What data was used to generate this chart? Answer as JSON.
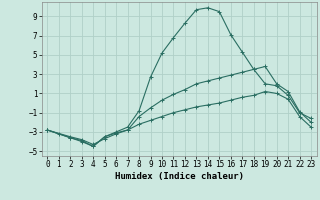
{
  "xlabel": "Humidex (Indice chaleur)",
  "bg_color": "#cce8e0",
  "grid_color": "#b0d0c8",
  "line_color": "#2a6e62",
  "xlim": [
    -0.5,
    23.5
  ],
  "ylim": [
    -5.5,
    10.5
  ],
  "yticks": [
    -5,
    -3,
    -1,
    1,
    3,
    5,
    7,
    9
  ],
  "xticks": [
    0,
    1,
    2,
    3,
    4,
    5,
    6,
    7,
    8,
    9,
    10,
    11,
    12,
    13,
    14,
    15,
    16,
    17,
    18,
    19,
    20,
    21,
    22,
    23
  ],
  "line1_x": [
    0,
    1,
    2,
    3,
    4,
    5,
    6,
    7,
    8,
    9,
    10,
    11,
    12,
    13,
    14,
    15,
    16,
    17,
    18,
    19,
    20,
    21,
    22,
    23
  ],
  "line1_y": [
    -2.8,
    -3.2,
    -3.6,
    -4.0,
    -4.5,
    -3.5,
    -3.0,
    -2.5,
    -0.8,
    2.7,
    5.2,
    6.8,
    8.3,
    9.7,
    9.9,
    9.5,
    7.1,
    5.3,
    3.5,
    2.0,
    1.8,
    0.8,
    -1.0,
    -1.6
  ],
  "line2_x": [
    0,
    2,
    3,
    4,
    5,
    6,
    7,
    8,
    9,
    10,
    11,
    12,
    13,
    14,
    15,
    16,
    17,
    18,
    19,
    20,
    21,
    22,
    23
  ],
  "line2_y": [
    -2.8,
    -3.5,
    -3.8,
    -4.3,
    -3.7,
    -3.2,
    -2.8,
    -1.4,
    -0.5,
    0.3,
    0.9,
    1.4,
    2.0,
    2.3,
    2.6,
    2.9,
    3.2,
    3.5,
    3.8,
    2.0,
    1.2,
    -0.9,
    -2.0
  ],
  "line3_x": [
    0,
    2,
    3,
    4,
    5,
    6,
    7,
    8,
    9,
    10,
    11,
    12,
    13,
    14,
    15,
    16,
    17,
    18,
    19,
    20,
    21,
    22,
    23
  ],
  "line3_y": [
    -2.8,
    -3.6,
    -3.9,
    -4.5,
    -3.5,
    -3.1,
    -2.8,
    -2.2,
    -1.8,
    -1.4,
    -1.0,
    -0.7,
    -0.4,
    -0.2,
    0.0,
    0.3,
    0.6,
    0.8,
    1.2,
    1.0,
    0.4,
    -1.4,
    -2.5
  ]
}
